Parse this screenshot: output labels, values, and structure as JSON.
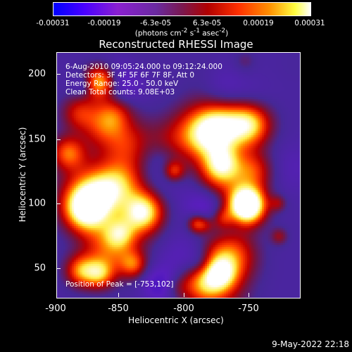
{
  "colorbar": {
    "ticks": [
      "-0.00031",
      "-0.00019",
      "-6.3e-05",
      "6.3e-05",
      "0.00019",
      "0.00031"
    ],
    "units_html": "(photons cm<sup>-2</sup> s<sup>-1</sup> asec<sup>-2</sup>)"
  },
  "plot": {
    "title": "Reconstructed RHESSI Image",
    "info_lines": [
      "6-Aug-2010 09:05:24.000 to 09:12:24.000",
      "Detectors: 3F 4F 5F 6F 7F 8F, Att 0",
      "Energy Range: 25.0 - 50.0 keV",
      "Clean     Total counts: 9.08E+03"
    ],
    "peak_text": "Position of Peak = [-753,102]",
    "x_ticks": [
      "-900",
      "-850",
      "-800",
      "-750"
    ],
    "y_ticks": [
      "200",
      "150",
      "100",
      "50"
    ],
    "x_label": "Heliocentric X (arcsec)",
    "y_label": "Heliocentric Y (arcsec)"
  },
  "datestamp": "9-May-2022 22:18"
}
